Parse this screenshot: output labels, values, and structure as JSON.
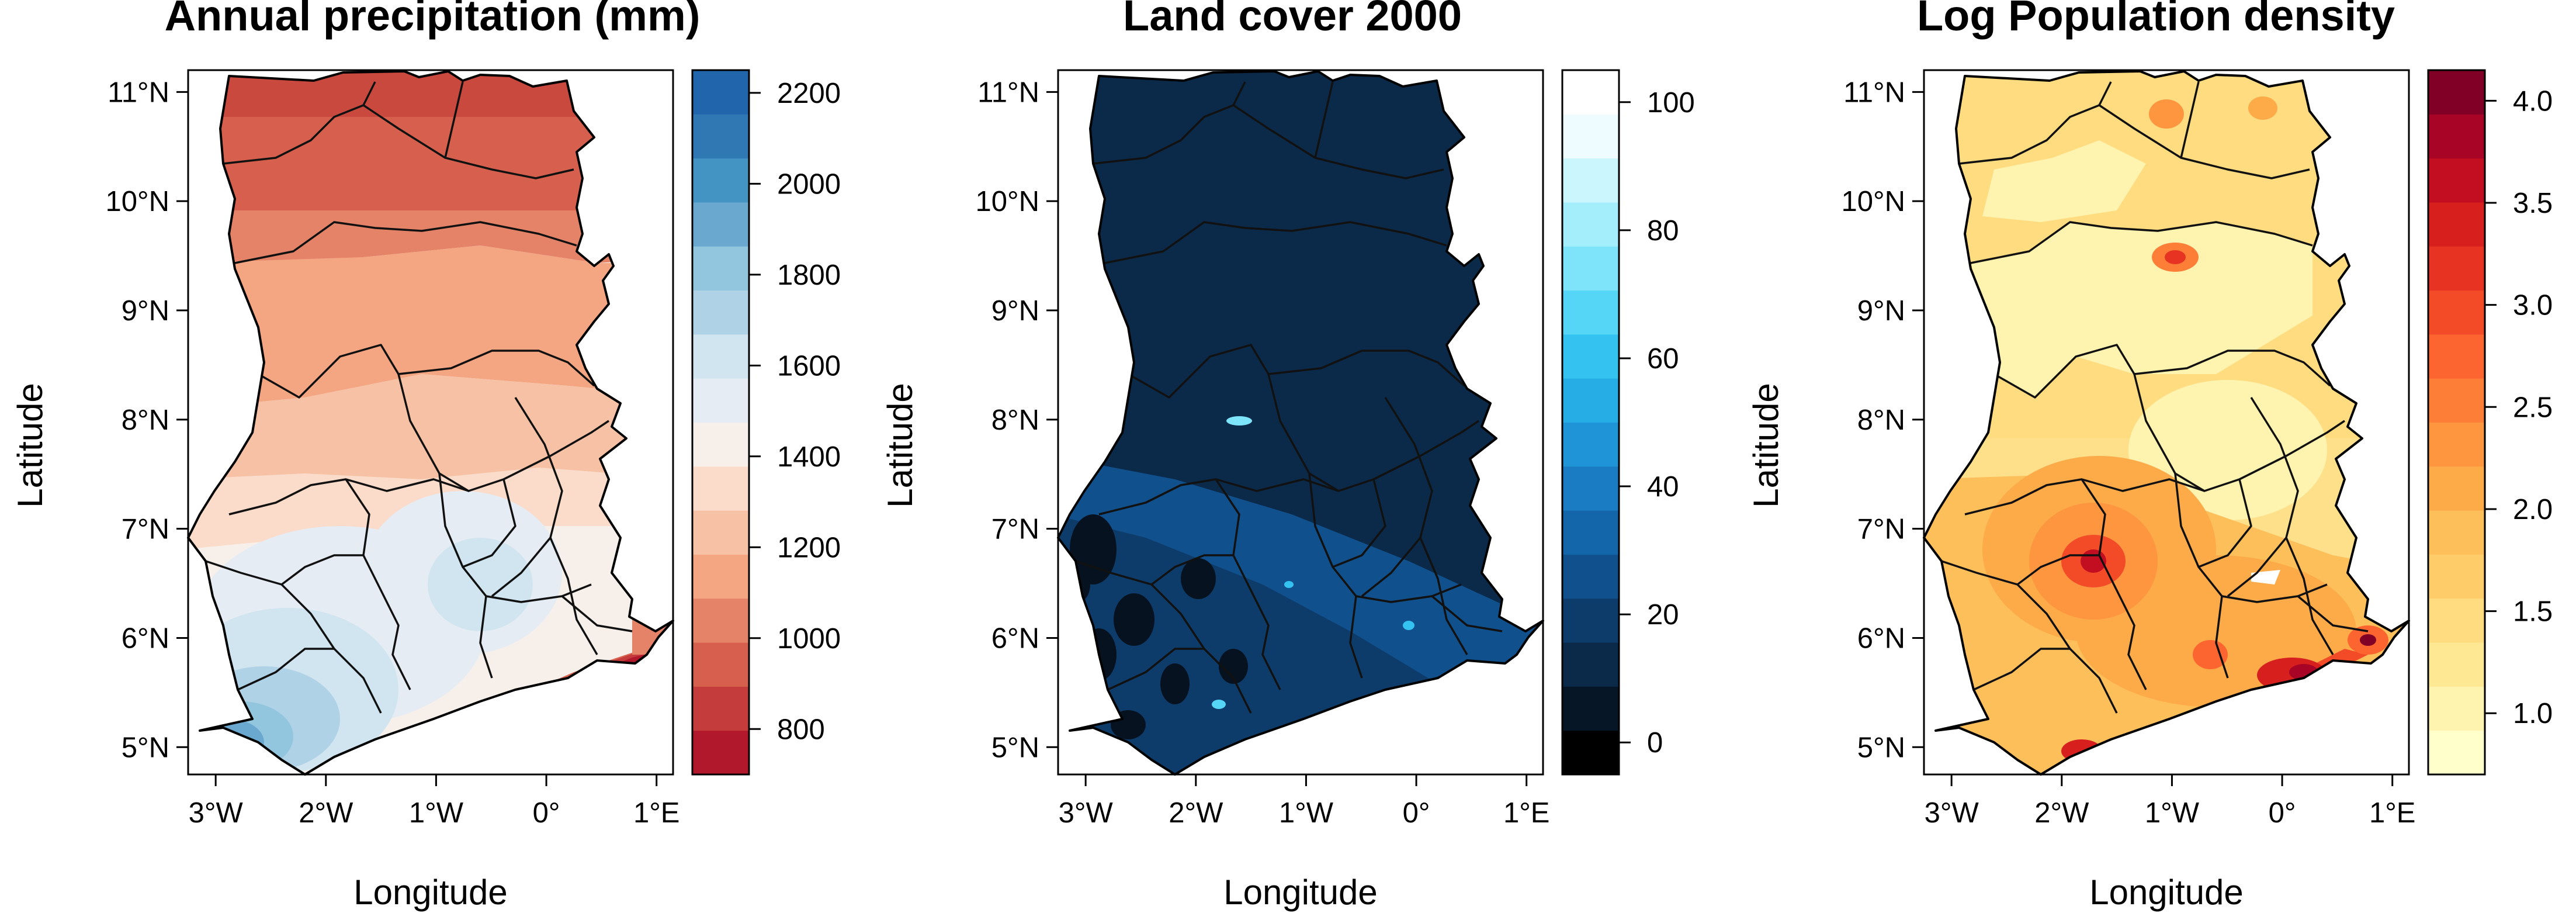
{
  "panels": [
    {
      "id": "precip",
      "title": "Annual precipitation (mm)",
      "xlabel": "Longitude",
      "ylabel": "Latitude",
      "lon_ticks": [
        "3°W",
        "2°W",
        "1°W",
        "0°",
        "1°E"
      ],
      "lat_ticks": [
        "5°N",
        "6°N",
        "7°N",
        "8°N",
        "9°N",
        "10°N",
        "11°N"
      ],
      "colorbar": {
        "range": [
          700,
          2250
        ],
        "ticks": [
          {
            "value": 800,
            "label": "800"
          },
          {
            "value": 1000,
            "label": "1000"
          },
          {
            "value": 1200,
            "label": "1200"
          },
          {
            "value": 1400,
            "label": "1400"
          },
          {
            "value": 1600,
            "label": "1600"
          },
          {
            "value": 1800,
            "label": "1800"
          },
          {
            "value": 2000,
            "label": "2000"
          },
          {
            "value": 2200,
            "label": "2200"
          }
        ],
        "colors": [
          "#b2182b",
          "#c43c3c",
          "#d6604d",
          "#e58368",
          "#f4a582",
          "#f7c1a5",
          "#fbdbc9",
          "#f7f0ea",
          "#e6ecf3",
          "#d1e5f0",
          "#b0d2e6",
          "#92c5de",
          "#6aa8d0",
          "#4393c3",
          "#3078b4",
          "#2166ac"
        ]
      }
    },
    {
      "id": "landcover",
      "title": "Land cover 2000",
      "xlabel": "Longitude",
      "ylabel": "Latitude",
      "lon_ticks": [
        "3°W",
        "2°W",
        "1°W",
        "0°",
        "1°E"
      ],
      "lat_ticks": [
        "5°N",
        "6°N",
        "7°N",
        "8°N",
        "9°N",
        "10°N",
        "11°N"
      ],
      "colorbar": {
        "range": [
          -5,
          105
        ],
        "ticks": [
          {
            "value": 0,
            "label": "0"
          },
          {
            "value": 20,
            "label": "20"
          },
          {
            "value": 40,
            "label": "40"
          },
          {
            "value": 60,
            "label": "60"
          },
          {
            "value": 80,
            "label": "80"
          },
          {
            "value": 100,
            "label": "100"
          }
        ],
        "colors": [
          "#000000",
          "#071626",
          "#0b2a4a",
          "#0e3c6a",
          "#10508c",
          "#1366aa",
          "#1a7cc2",
          "#1f94d6",
          "#26ade6",
          "#34c3f0",
          "#56d6f6",
          "#7de4fa",
          "#a4eefc",
          "#cbf6fd",
          "#eefcff",
          "#ffffff"
        ]
      }
    },
    {
      "id": "popdens",
      "title": "Log Population density",
      "xlabel": "Longitude",
      "ylabel": "Latitude",
      "lon_ticks": [
        "3°W",
        "2°W",
        "1°W",
        "0°",
        "1°E"
      ],
      "lat_ticks": [
        "5°N",
        "6°N",
        "7°N",
        "8°N",
        "9°N",
        "10°N",
        "11°N"
      ],
      "colorbar": {
        "range": [
          0.7,
          4.15
        ],
        "ticks": [
          {
            "value": 1.0,
            "label": "1.0"
          },
          {
            "value": 1.5,
            "label": "1.5"
          },
          {
            "value": 2.0,
            "label": "2.0"
          },
          {
            "value": 2.5,
            "label": "2.5"
          },
          {
            "value": 3.0,
            "label": "3.0"
          },
          {
            "value": 3.5,
            "label": "3.5"
          },
          {
            "value": 4.0,
            "label": "4.0"
          }
        ],
        "colors": [
          "#ffffcc",
          "#fff3b0",
          "#ffe893",
          "#fedc7f",
          "#fecd6a",
          "#fdbf5a",
          "#fdaa48",
          "#fd963f",
          "#fd7f37",
          "#fc6530",
          "#f34a28",
          "#e73322",
          "#d71f1e",
          "#c30e22",
          "#a80526",
          "#800026"
        ]
      }
    }
  ]
}
